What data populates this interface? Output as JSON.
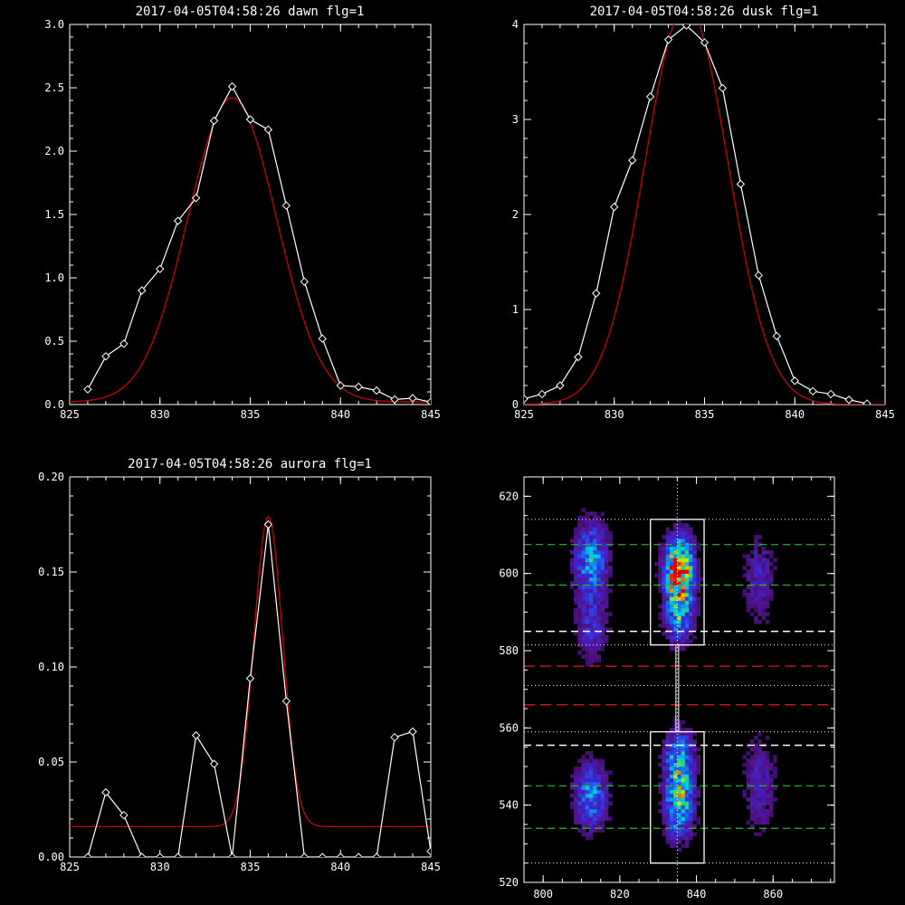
{
  "colors": {
    "background": "#000000",
    "axes": "#ffffff",
    "data_line": "#ffffff",
    "fit_line": "#cc0000",
    "dotted_line": "#ffffff",
    "green_dash": "#22c022",
    "red_dash": "#cc1111",
    "white_dash": "#ffffff"
  },
  "chart_data": [
    {
      "type": "line",
      "title": "2017-04-05T04:58:26 dawn flg=1",
      "xlim": [
        825,
        845
      ],
      "ylim": [
        0,
        3.0
      ],
      "x_ticks": [
        "825",
        "830",
        "835",
        "840",
        "845"
      ],
      "y_ticks": [
        "0.0",
        "0.5",
        "1.0",
        "1.5",
        "2.0",
        "2.5",
        "3.0"
      ],
      "series": [
        {
          "style": "data",
          "x": [
            826,
            827,
            828,
            829,
            830,
            831,
            832,
            833,
            834,
            835,
            836,
            837,
            838,
            839,
            840,
            841,
            842,
            843,
            844,
            845
          ],
          "y": [
            0.12,
            0.38,
            0.48,
            0.9,
            1.07,
            1.45,
            1.63,
            2.24,
            2.51,
            2.25,
            2.17,
            1.57,
            0.97,
            0.52,
            0.15,
            0.14,
            0.11,
            0.04,
            0.05,
            0.02
          ]
        },
        {
          "style": "fit",
          "fit": {
            "amp": 2.4,
            "center": 834.0,
            "sigma": 2.45,
            "base": 0.02
          }
        }
      ]
    },
    {
      "type": "line",
      "title": "2017-04-05T04:58:26 dusk flg=1",
      "xlim": [
        825,
        845
      ],
      "ylim": [
        0,
        4.0
      ],
      "x_ticks": [
        "825",
        "830",
        "835",
        "840",
        "845"
      ],
      "y_ticks": [
        "0",
        "1",
        "2",
        "3",
        "4"
      ],
      "series": [
        {
          "style": "data",
          "x": [
            825,
            826,
            827,
            828,
            829,
            830,
            831,
            832,
            833,
            834,
            835,
            836,
            837,
            838,
            839,
            840,
            841,
            842,
            843,
            844
          ],
          "y": [
            0.06,
            0.11,
            0.2,
            0.5,
            1.17,
            2.08,
            2.57,
            3.24,
            3.84,
            3.99,
            3.81,
            3.33,
            2.32,
            1.36,
            0.72,
            0.25,
            0.14,
            0.11,
            0.05,
            0.01
          ]
        },
        {
          "style": "fit",
          "fit": {
            "amp": 4.2,
            "center": 834.0,
            "sigma": 2.3,
            "base": 0.0
          }
        }
      ]
    },
    {
      "type": "line",
      "title": "2017-04-05T04:58:26 aurora flg=1",
      "xlim": [
        825,
        845
      ],
      "ylim": [
        0,
        0.2
      ],
      "x_ticks": [
        "825",
        "830",
        "835",
        "840",
        "845"
      ],
      "y_ticks": [
        "0.00",
        "0.05",
        "0.10",
        "0.15",
        "0.20"
      ],
      "series": [
        {
          "style": "data",
          "x": [
            826,
            827,
            828,
            829,
            830,
            831,
            832,
            833,
            834,
            835,
            836,
            837,
            838,
            839,
            840,
            841,
            842,
            843,
            844,
            845
          ],
          "y": [
            0.0,
            0.034,
            0.022,
            0.0,
            0.0,
            0.0,
            0.064,
            0.049,
            0.0,
            0.094,
            0.175,
            0.082,
            0.0,
            0.0,
            0.0,
            0.0,
            0.0,
            0.063,
            0.066,
            0.003
          ]
        },
        {
          "style": "fit",
          "fit": {
            "amp": 0.163,
            "center": 836.0,
            "sigma": 0.8,
            "base": 0.016
          }
        }
      ]
    },
    {
      "type": "heatmap",
      "title": "",
      "xlim": [
        795,
        876
      ],
      "ylim": [
        520,
        625
      ],
      "x_ticks": [
        "800",
        "820",
        "840",
        "860"
      ],
      "y_ticks": [
        "520",
        "540",
        "560",
        "580",
        "600",
        "620"
      ],
      "blobs": [
        {
          "x": 812,
          "y": 603,
          "sx": 3.0,
          "sy": 7,
          "intensity": 0.5
        },
        {
          "x": 812,
          "y": 585,
          "sx": 3.0,
          "sy": 6,
          "intensity": 0.25
        },
        {
          "x": 812,
          "y": 542,
          "sx": 3.0,
          "sy": 6,
          "intensity": 0.45
        },
        {
          "x": 835,
          "y": 600,
          "sx": 2.6,
          "sy": 6,
          "intensity": 1.0
        },
        {
          "x": 835,
          "y": 588,
          "sx": 2.6,
          "sy": 5,
          "intensity": 0.4
        },
        {
          "x": 835,
          "y": 552,
          "sx": 2.6,
          "sy": 5,
          "intensity": 0.5
        },
        {
          "x": 835,
          "y": 540,
          "sx": 2.6,
          "sy": 6,
          "intensity": 0.65
        },
        {
          "x": 856,
          "y": 598,
          "sx": 3.0,
          "sy": 8,
          "intensity": 0.22
        },
        {
          "x": 856,
          "y": 545,
          "sx": 3.0,
          "sy": 9,
          "intensity": 0.22
        }
      ],
      "boxes": [
        {
          "x0": 828,
          "x1": 842,
          "y0": 581.5,
          "y1": 614
        },
        {
          "x0": 828,
          "x1": 842,
          "y0": 525,
          "y1": 559
        }
      ],
      "bridge": {
        "x": 835,
        "y0": 559,
        "y1": 581.5
      },
      "vertical_dotted_x": 835,
      "dotted_y": [
        614,
        581.5,
        571,
        559,
        525
      ],
      "green_dash_y": [
        607.5,
        597,
        545,
        534
      ],
      "white_dash_y": [
        585,
        555.5
      ],
      "red_dash_y": [
        576,
        566
      ]
    }
  ]
}
